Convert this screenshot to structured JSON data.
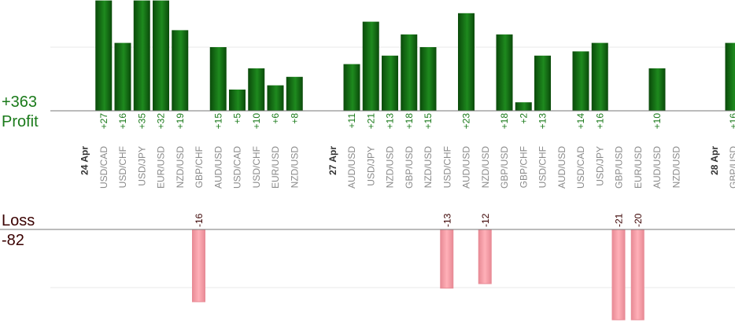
{
  "summary": {
    "profit_value": "+363",
    "profit_label": "Profit",
    "loss_label": "Loss",
    "loss_value": "-82"
  },
  "colors": {
    "profit_bar_dark": "#0a4a0a",
    "profit_bar_light": "#1e8a1e",
    "profit_text": "#1a7a1a",
    "loss_bar": "#ffb0b8",
    "loss_bar_edge": "#e88a95",
    "loss_text": "#3a0000",
    "axis_line": "#777777",
    "gridline": "#e8e8e8",
    "tick_text": "#8a8a8a",
    "date_text": "#333333"
  },
  "chart_data": {
    "type": "bar",
    "grid": true,
    "profit_ylim": [
      0,
      26
    ],
    "loss_ylim": [
      0,
      20
    ],
    "categories": [
      {
        "label": "24 Apr",
        "date": true
      },
      {
        "label": "USD/CAD",
        "value": 27
      },
      {
        "label": "USD/CHF",
        "value": 16
      },
      {
        "label": "USD/JPY",
        "value": 35
      },
      {
        "label": "EUR/USD",
        "value": 32
      },
      {
        "label": "NZD/USD",
        "value": 19
      },
      {
        "label": "GBP/CHF",
        "value": -16
      },
      {
        "label": "AUD/USD",
        "value": 15
      },
      {
        "label": "USD/CAD",
        "value": 5
      },
      {
        "label": "USD/CHF",
        "value": 10
      },
      {
        "label": "EUR/USD",
        "value": 6
      },
      {
        "label": "NZD/USD",
        "value": 8
      },
      {
        "label": "",
        "spacer": true
      },
      {
        "label": "27 Apr",
        "date": true
      },
      {
        "label": "AUD/USD",
        "value": 11
      },
      {
        "label": "USD/JPY",
        "value": 21
      },
      {
        "label": "NZD/USD",
        "value": 13
      },
      {
        "label": "GBP/USD",
        "value": 18
      },
      {
        "label": "NZD/USD",
        "value": 15
      },
      {
        "label": "USD/CHF",
        "value": -13
      },
      {
        "label": "AUD/USD",
        "value": 23
      },
      {
        "label": "NZD/USD",
        "value": -12
      },
      {
        "label": "GBP/USD",
        "value": 18
      },
      {
        "label": "GBP/CHF",
        "value": 2
      },
      {
        "label": "USD/CHF",
        "value": 13
      },
      {
        "label": "AUD/USD",
        "value": null
      },
      {
        "label": "USD/CAD",
        "value": 14
      },
      {
        "label": "USD/JPY",
        "value": 16
      },
      {
        "label": "GBP/USD",
        "value": -21
      },
      {
        "label": "EUR/USD",
        "value": -20
      },
      {
        "label": "AUD/USD",
        "value": 10
      },
      {
        "label": "NZD/USD",
        "value": null
      },
      {
        "label": "",
        "spacer": true
      },
      {
        "label": "28 Apr",
        "date": true
      },
      {
        "label": "GBP/USD",
        "value": 16
      }
    ]
  }
}
